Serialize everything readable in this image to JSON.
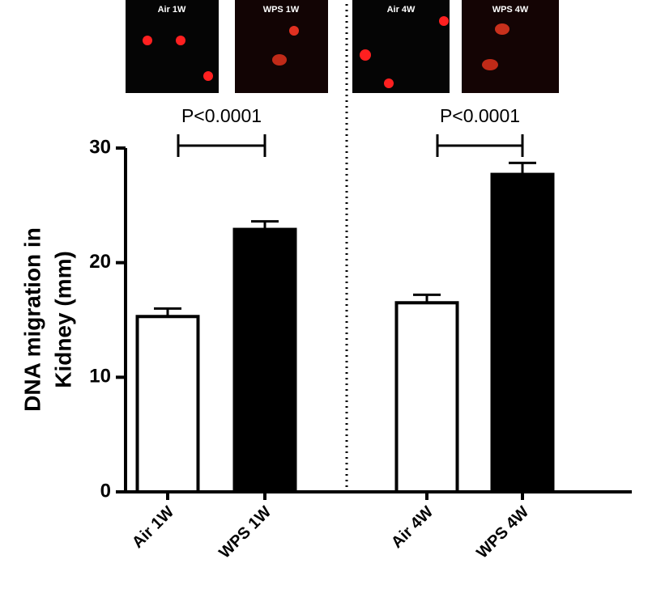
{
  "chart_data": {
    "type": "bar",
    "panel_labels": [
      "Air 1W",
      "WPS 1W",
      "Air 4W",
      "WPS 4W"
    ],
    "ylabel": [
      "DNA migration in",
      "Kidney (mm)"
    ],
    "categories": [
      "Air 1W",
      "WPS 1W",
      "Air 4W",
      "WPS 4W"
    ],
    "values": [
      15.3,
      22.9,
      16.5,
      27.7
    ],
    "errors": [
      0.7,
      0.7,
      0.7,
      1.0
    ],
    "colors": [
      "#ffffff",
      "#000000",
      "#ffffff",
      "#000000"
    ],
    "ylim": [
      0,
      30
    ],
    "yticks": [
      0,
      10,
      20,
      30
    ],
    "annotations": [
      {
        "text": "P<0.0001",
        "from": 0,
        "to": 1
      },
      {
        "text": "P<0.0001",
        "from": 2,
        "to": 3
      }
    ]
  }
}
